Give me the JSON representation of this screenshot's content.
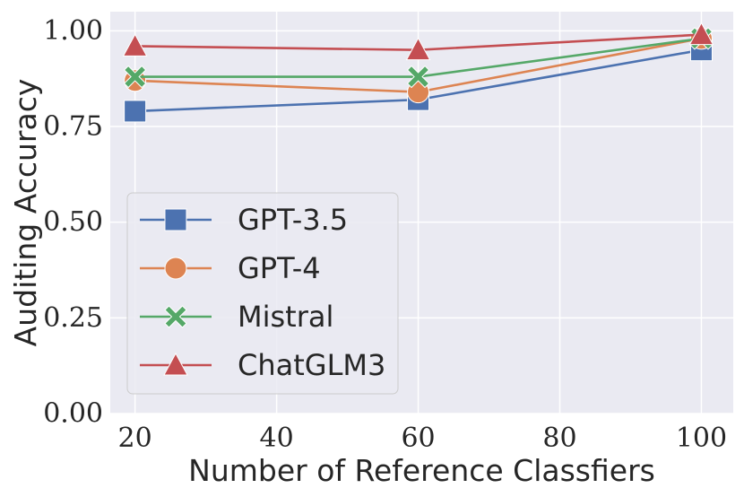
{
  "chart_data": {
    "type": "line",
    "title": "",
    "xlabel": "Number of Reference Classfiers",
    "ylabel": "Auditing Accuracy",
    "x": [
      20,
      60,
      100
    ],
    "xlim": [
      16.5,
      104.5
    ],
    "ylim": [
      0.0,
      1.05
    ],
    "xticks": [
      20,
      40,
      60,
      80,
      100
    ],
    "xtick_labels": [
      "20",
      "40",
      "60",
      "80",
      "100"
    ],
    "yticks": [
      0.0,
      0.25,
      0.5,
      0.75,
      1.0
    ],
    "ytick_labels": [
      "0.00",
      "0.25",
      "0.50",
      "0.75",
      "1.00"
    ],
    "grid": true,
    "legend_position": "center-left",
    "series": [
      {
        "name": "GPT-3.5",
        "values": [
          0.79,
          0.82,
          0.95
        ],
        "color": "#4c72b0",
        "marker": "square"
      },
      {
        "name": "GPT-4",
        "values": [
          0.87,
          0.84,
          0.98
        ],
        "color": "#dd8452",
        "marker": "circle"
      },
      {
        "name": "Mistral",
        "values": [
          0.88,
          0.88,
          0.98
        ],
        "color": "#55a868",
        "marker": "x"
      },
      {
        "name": "ChatGLM3",
        "values": [
          0.96,
          0.95,
          0.99
        ],
        "color": "#c44e52",
        "marker": "triangle"
      }
    ]
  }
}
